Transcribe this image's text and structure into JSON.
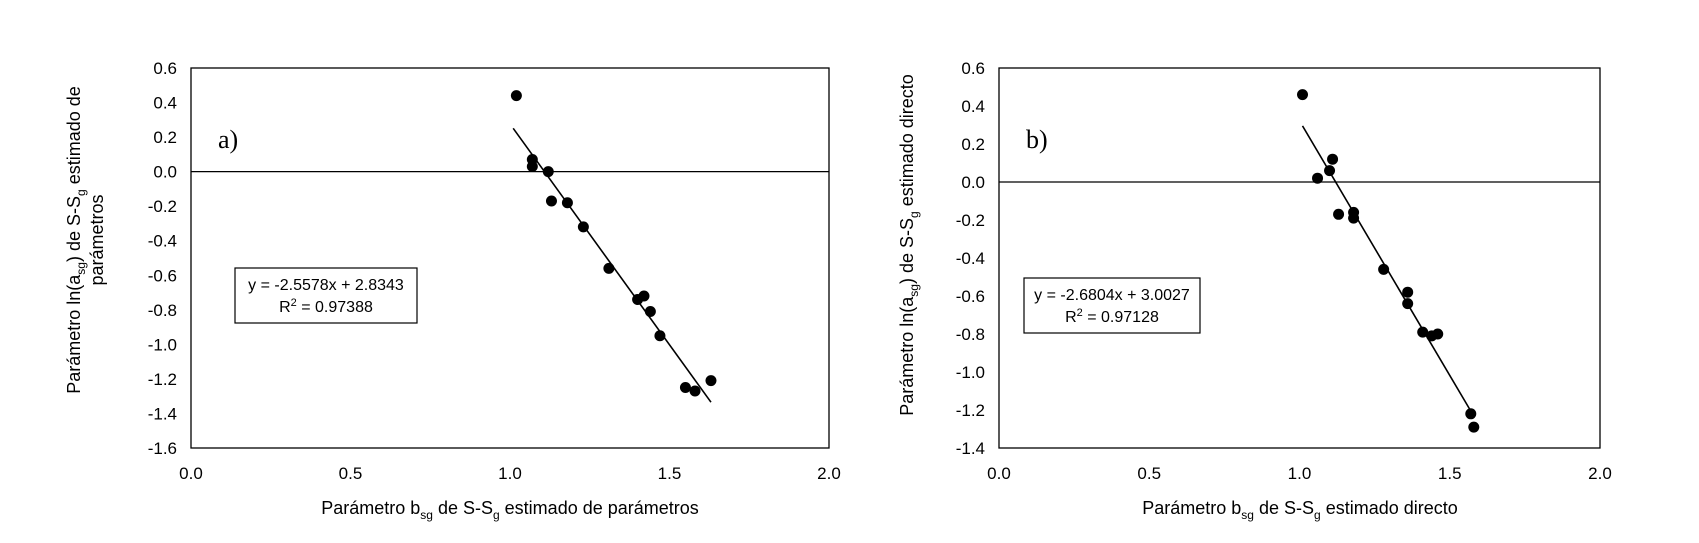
{
  "chart_data": [
    {
      "type": "scatter",
      "panel_label": "a)",
      "xlabel": {
        "main": "Parámetro b",
        "sub1": "sg",
        "mid": " de S-S",
        "sub2": "g",
        "tail": " estimado de parámetros"
      },
      "ylabel": {
        "line1_pre": "Parámetro ln(a",
        "line1_sub1": "sg",
        "line1_mid": ") de S-S",
        "line1_sub2": "g",
        "line1_post": " estimado de",
        "line2": "parámetros"
      },
      "xlim": [
        0.0,
        2.0
      ],
      "ylim": [
        -1.6,
        0.6
      ],
      "xticks": [
        "0.0",
        "0.5",
        "1.0",
        "1.5",
        "2.0"
      ],
      "yticks": [
        "0.6",
        "0.4",
        "0.2",
        "0.0",
        "-0.2",
        "-0.4",
        "-0.6",
        "-0.8",
        "-1.0",
        "-1.2",
        "-1.4",
        "-1.6"
      ],
      "ytick_values": [
        0.6,
        0.4,
        0.2,
        0.0,
        -0.2,
        -0.4,
        -0.6,
        -0.8,
        -1.0,
        -1.2,
        -1.4,
        -1.6
      ],
      "xtick_values": [
        0.0,
        0.5,
        1.0,
        1.5,
        2.0
      ],
      "points": [
        [
          1.02,
          0.44
        ],
        [
          1.07,
          0.07
        ],
        [
          1.07,
          0.03
        ],
        [
          1.12,
          0.0
        ],
        [
          1.13,
          -0.17
        ],
        [
          1.18,
          -0.18
        ],
        [
          1.23,
          -0.32
        ],
        [
          1.31,
          -0.56
        ],
        [
          1.4,
          -0.74
        ],
        [
          1.42,
          -0.72
        ],
        [
          1.44,
          -0.81
        ],
        [
          1.47,
          -0.95
        ],
        [
          1.55,
          -1.25
        ],
        [
          1.58,
          -1.27
        ],
        [
          1.63,
          -1.21
        ]
      ],
      "trendline": {
        "slope": -2.5578,
        "intercept": 2.8343,
        "x_range": [
          1.01,
          1.63
        ]
      },
      "equation": "y = -2.5578x + 2.8343",
      "r2_prefix": "R",
      "r2_sup": "2",
      "r2_value": " = 0.97388",
      "grid": false
    },
    {
      "type": "scatter",
      "panel_label": "b)",
      "xlabel": {
        "main": "Parámetro b",
        "sub1": "sg",
        "mid": " de S-S",
        "sub2": "g",
        "tail": " estimado directo"
      },
      "ylabel": {
        "line1_pre": "Parámetro ln(a",
        "line1_sub1": "sg",
        "line1_mid": ") de S-S",
        "line1_sub2": "g",
        "line1_post": " estimado directo",
        "line2": ""
      },
      "xlim": [
        0.0,
        2.0
      ],
      "ylim": [
        -1.4,
        0.6
      ],
      "xticks": [
        "0.0",
        "0.5",
        "1.0",
        "1.5",
        "2.0"
      ],
      "yticks": [
        "0.6",
        "0.4",
        "0.2",
        "0.0",
        "-0.2",
        "-0.4",
        "-0.6",
        "-0.8",
        "-1.0",
        "-1.2",
        "-1.4"
      ],
      "ytick_values": [
        0.6,
        0.4,
        0.2,
        0.0,
        -0.2,
        -0.4,
        -0.6,
        -0.8,
        -1.0,
        -1.2,
        -1.4
      ],
      "xtick_values": [
        0.0,
        0.5,
        1.0,
        1.5,
        2.0
      ],
      "points": [
        [
          1.01,
          0.46
        ],
        [
          1.06,
          0.02
        ],
        [
          1.1,
          0.06
        ],
        [
          1.11,
          0.12
        ],
        [
          1.13,
          -0.17
        ],
        [
          1.18,
          -0.16
        ],
        [
          1.18,
          -0.19
        ],
        [
          1.28,
          -0.46
        ],
        [
          1.36,
          -0.58
        ],
        [
          1.36,
          -0.64
        ],
        [
          1.41,
          -0.79
        ],
        [
          1.44,
          -0.81
        ],
        [
          1.46,
          -0.8
        ],
        [
          1.57,
          -1.22
        ],
        [
          1.58,
          -1.29
        ]
      ],
      "trendline": {
        "slope": -2.6804,
        "intercept": 3.0027,
        "x_range": [
          1.01,
          1.58
        ]
      },
      "equation": "y = -2.6804x + 3.0027",
      "r2_prefix": "R",
      "r2_sup": "2",
      "r2_value": " = 0.97128",
      "grid": false
    }
  ]
}
